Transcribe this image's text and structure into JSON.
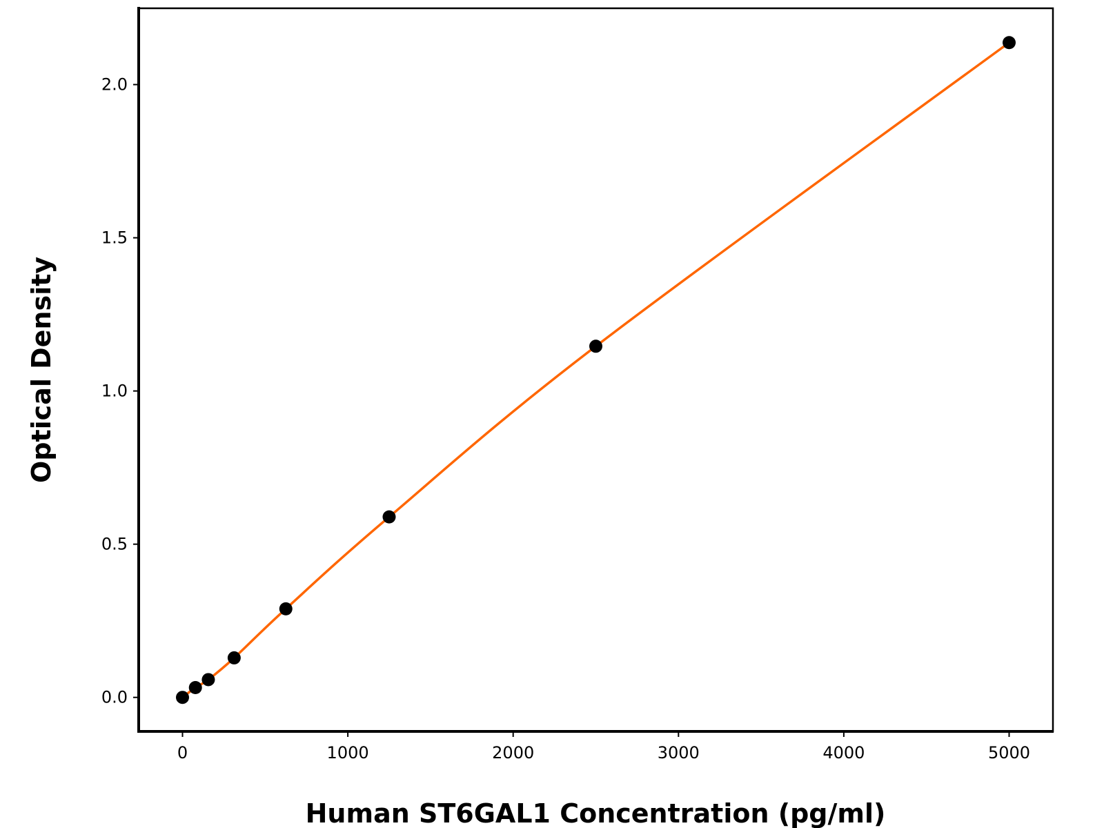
{
  "chart_data": {
    "type": "line",
    "title": "",
    "xlabel": "Human ST6GAL1 Concentration (pg/ml)",
    "ylabel": "Optical Density",
    "xlim": [
      -265,
      5265
    ],
    "ylim": [
      -0.111,
      2.249
    ],
    "grid": false,
    "x_ticks": [
      "0",
      "1000",
      "2000",
      "3000",
      "4000",
      "5000"
    ],
    "y_ticks": [
      "0.0",
      "0.5",
      "1.0",
      "1.5",
      "2.0"
    ],
    "series": [
      {
        "x": [
          0,
          78.125,
          156.25,
          312.5,
          625,
          1250,
          2500,
          5000
        ],
        "y": [
          0.0,
          0.032,
          0.058,
          0.129,
          0.289,
          0.589,
          1.146,
          2.137
        ],
        "marker_color": "#000000",
        "line_color": "#ff6600"
      }
    ]
  }
}
